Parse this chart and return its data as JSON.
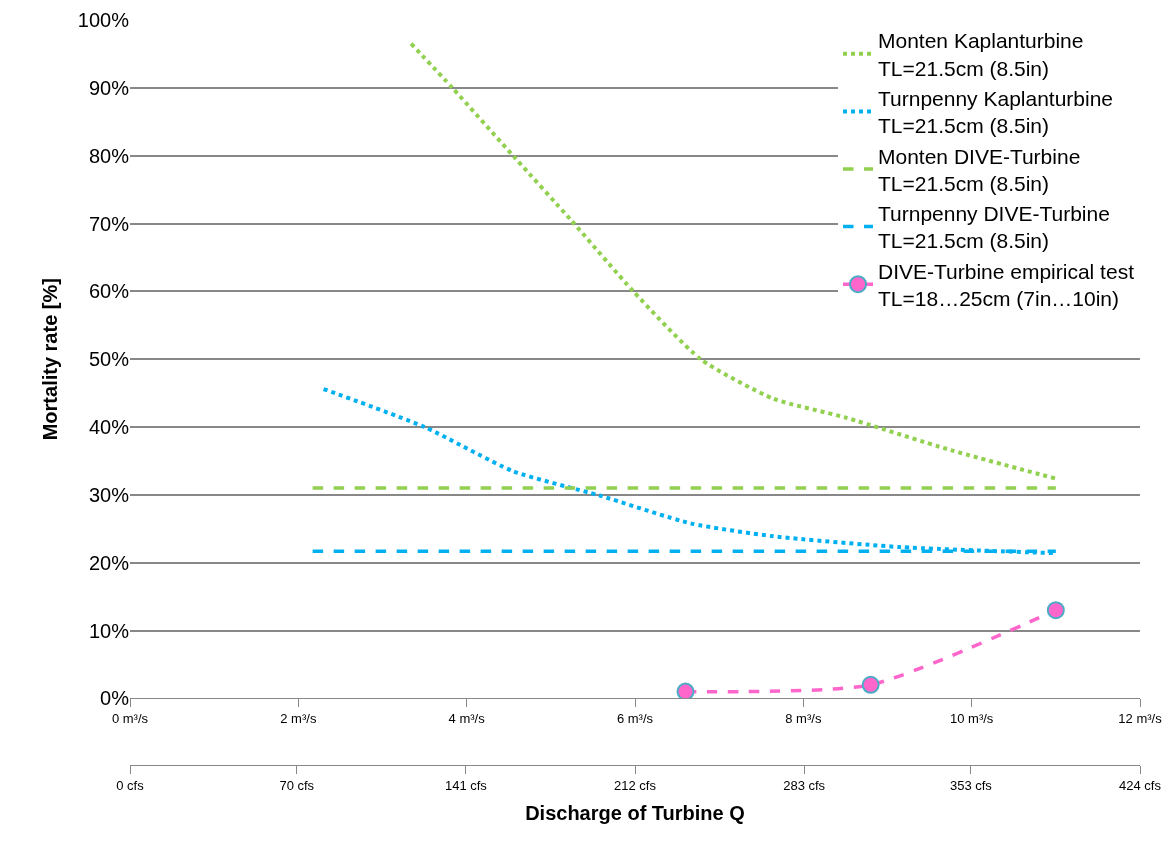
{
  "chart_data": {
    "type": "line",
    "xlabel": "Discharge of Turbine Q",
    "ylabel": "Mortality rate [%]",
    "xlim": [
      0,
      12
    ],
    "xticks": [
      {
        "value": 0,
        "label": "0 m³/s"
      },
      {
        "value": 2,
        "label": "2 m³/s"
      },
      {
        "value": 4,
        "label": "4 m³/s"
      },
      {
        "value": 6,
        "label": "6 m³/s"
      },
      {
        "value": 8,
        "label": "8 m³/s"
      },
      {
        "value": 10,
        "label": "10 m³/s"
      },
      {
        "value": 12,
        "label": "12 m³/s"
      }
    ],
    "x2lim": [
      0,
      424
    ],
    "x2ticks": [
      {
        "value": 0,
        "label": "0 cfs"
      },
      {
        "value": 70,
        "label": "70 cfs"
      },
      {
        "value": 141,
        "label": "141 cfs"
      },
      {
        "value": 212,
        "label": "212 cfs"
      },
      {
        "value": 283,
        "label": "283 cfs"
      },
      {
        "value": 353,
        "label": "353 cfs"
      },
      {
        "value": 424,
        "label": "424 cfs"
      }
    ],
    "ylim": [
      0,
      100
    ],
    "yticks": [
      {
        "value": 0,
        "label": "0%"
      },
      {
        "value": 10,
        "label": "10%"
      },
      {
        "value": 20,
        "label": "20%"
      },
      {
        "value": 30,
        "label": "30%"
      },
      {
        "value": 40,
        "label": "40%"
      },
      {
        "value": 50,
        "label": "50%"
      },
      {
        "value": 60,
        "label": "60%"
      },
      {
        "value": 70,
        "label": "70%"
      },
      {
        "value": 80,
        "label": "80%"
      },
      {
        "value": 90,
        "label": "90%"
      },
      {
        "value": 100,
        "label": "100%"
      }
    ],
    "grid": "y",
    "legend": "top right",
    "series": [
      {
        "name": "Monten Kaplanturbine\nTL=21.5cm (8.5in)",
        "color": "#92d050",
        "line_style": "dotted",
        "marker": "none",
        "x": [
          3.34,
          3.83,
          4.58,
          5.24,
          5.98,
          6.78,
          7.64,
          8.5,
          9.75,
          11.0
        ],
        "values": [
          96.5,
          90,
          79.6,
          70.5,
          60,
          50,
          44.2,
          41.4,
          36.6,
          32.4
        ]
      },
      {
        "name": "Turnpenny Kaplanturbine\nTL=21.5cm (8.5in)",
        "color": "#00b0f0",
        "line_style": "dotted",
        "marker": "none",
        "x": [
          2.3,
          3.5,
          4.55,
          5.58,
          6.66,
          7.64,
          9.15,
          11.0
        ],
        "values": [
          45.6,
          40,
          33.5,
          29.9,
          25.8,
          23.9,
          22.3,
          21.4
        ]
      },
      {
        "name": "Monten DIVE-Turbine\nTL=21.5cm (8.5in)",
        "color": "#92d050",
        "line_style": "dashed",
        "marker": "none",
        "x": [
          2.17,
          11.0
        ],
        "values": [
          31,
          31
        ]
      },
      {
        "name": "Turnpenny DIVE-Turbine\nTL=21.5cm (8.5in)",
        "color": "#00b0f0",
        "line_style": "dashed",
        "marker": "none",
        "x": [
          2.17,
          11.0
        ],
        "values": [
          21.7,
          21.7
        ]
      },
      {
        "name": "DIVE-Turbine empirical test\nTL=18…25cm (7in…10in)",
        "color": "#ff66cc",
        "line_style": "dashed",
        "marker": "circle",
        "x": [
          6.6,
          8.8,
          11.0
        ],
        "values": [
          1,
          2,
          13
        ]
      }
    ]
  }
}
